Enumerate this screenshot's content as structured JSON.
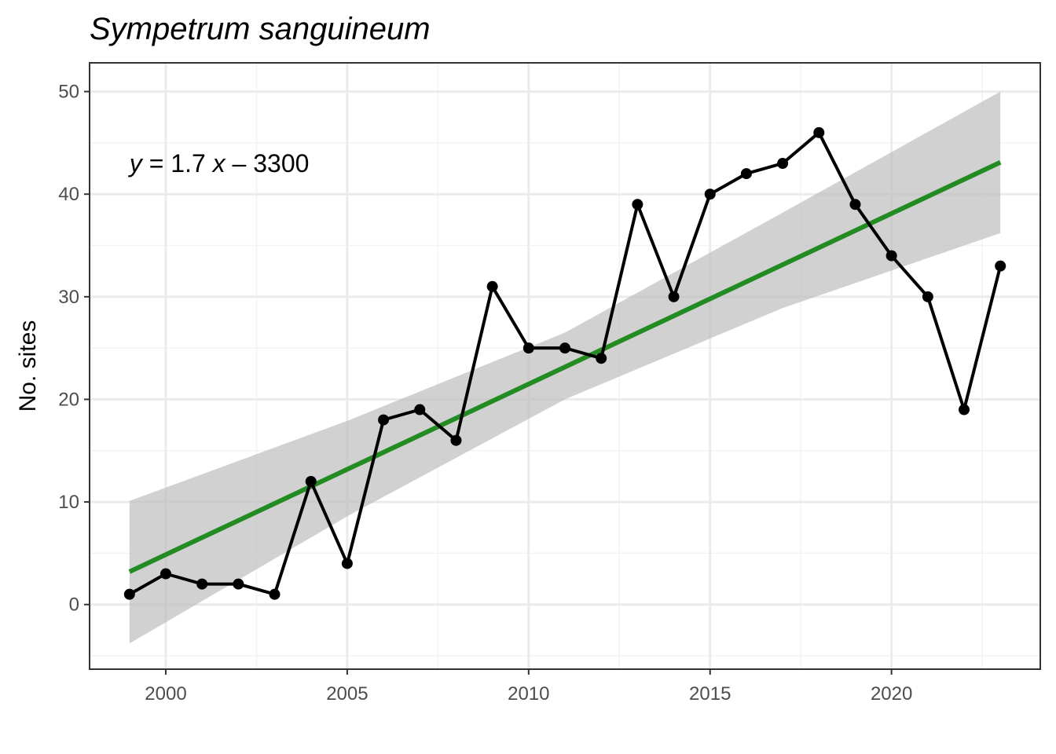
{
  "chart_data": {
    "type": "line",
    "title": "Sympetrum sanguineum",
    "xlabel": "",
    "ylabel": "No. sites",
    "xlim": [
      1997.9,
      2024.1
    ],
    "ylim": [
      -6.3,
      52.8
    ],
    "x_ticks": [
      2000,
      2005,
      2010,
      2015,
      2020
    ],
    "y_ticks": [
      0,
      10,
      20,
      30,
      40,
      50
    ],
    "grid": true,
    "legend": "none",
    "annotation": {
      "y_var": "y",
      "equals": " = 1.7 ",
      "x_var": "x",
      "rest": " – 3300",
      "anchor_x": 1999,
      "anchor_y": 43
    },
    "series": [
      {
        "x": [
          1999,
          2000,
          2001,
          2002,
          2003,
          2004,
          2005,
          2006,
          2007,
          2008,
          2009,
          2010,
          2011,
          2012,
          2013,
          2014,
          2015,
          2016,
          2017,
          2018,
          2019,
          2020,
          2021,
          2022,
          2023
        ],
        "values": [
          1,
          3,
          2,
          2,
          1,
          12,
          4,
          18,
          19,
          16,
          31,
          25,
          25,
          24,
          39,
          30,
          40,
          42,
          43,
          46,
          39,
          34,
          30,
          19,
          33
        ],
        "color": "#000000"
      }
    ],
    "trend": {
      "type": "linear",
      "x": [
        1999,
        2023
      ],
      "y": [
        3.2,
        43.1
      ],
      "color": "#228b22",
      "ci": {
        "x": [
          1999,
          2005,
          2011,
          2017,
          2023
        ],
        "lower": [
          -3.8,
          8.6,
          20.0,
          28.9,
          36.2
        ],
        "upper": [
          10.1,
          17.9,
          26.5,
          38.2,
          50.0
        ],
        "color": "#bebebe"
      }
    },
    "colors": {
      "panel_border": "#333333",
      "grid_major": "#ebebeb",
      "grid_minor": "#f3f3f3",
      "tick_label": "#4d4d4d"
    }
  }
}
